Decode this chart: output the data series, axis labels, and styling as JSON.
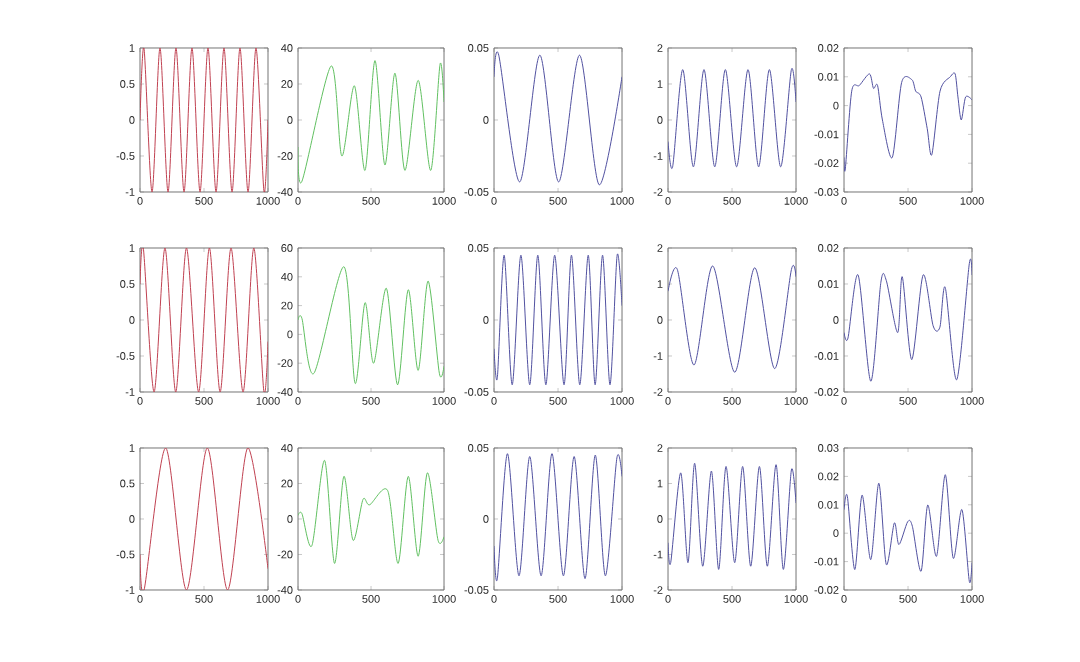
{
  "chart_data": [
    {
      "type": "line",
      "color": "#c04050",
      "xlim": [
        0,
        1000
      ],
      "ylim": [
        -1,
        1
      ],
      "xticks": [
        0,
        500,
        1000
      ],
      "yticks": [
        -1,
        -0.5,
        0,
        0.5,
        1
      ],
      "x": [
        0,
        31,
        94,
        156,
        219,
        281,
        344,
        406,
        469,
        531,
        594,
        656,
        719,
        781,
        844,
        906,
        969,
        1000
      ],
      "values": [
        0,
        1,
        -1,
        1,
        -1,
        1,
        -1,
        1,
        -1,
        1,
        -1,
        1,
        -1,
        1,
        -1,
        1,
        -1,
        0
      ]
    },
    {
      "type": "line",
      "color": "#60c060",
      "xlim": [
        0,
        1000
      ],
      "ylim": [
        -40,
        40
      ],
      "xticks": [
        0,
        500,
        1000
      ],
      "yticks": [
        -40,
        -20,
        0,
        20,
        40
      ],
      "x": [
        0,
        27,
        227,
        300,
        386,
        459,
        527,
        595,
        664,
        732,
        823,
        909,
        973,
        1000
      ],
      "values": [
        -15,
        -34,
        30,
        -20,
        19,
        -28,
        33,
        -25,
        26,
        -28,
        22,
        -28,
        31,
        10
      ]
    },
    {
      "type": "line",
      "color": "#5050a0",
      "xlim": [
        0,
        1000
      ],
      "ylim": [
        -0.05,
        0.05
      ],
      "xticks": [
        0,
        500,
        1000
      ],
      "yticks": [
        -0.05,
        0,
        0.05
      ],
      "x": [
        0,
        37,
        200,
        358,
        505,
        668,
        822,
        1000
      ],
      "values": [
        0.03,
        0.045,
        -0.043,
        0.045,
        -0.043,
        0.045,
        -0.045,
        0.03
      ]
    },
    {
      "type": "line",
      "color": "#5050a0",
      "xlim": [
        0,
        1000
      ],
      "ylim": [
        -2,
        2
      ],
      "xticks": [
        0,
        500,
        1000
      ],
      "yticks": [
        -2,
        -1,
        0,
        1,
        2
      ],
      "x": [
        0,
        36,
        115,
        198,
        281,
        365,
        448,
        536,
        625,
        708,
        792,
        880,
        964,
        1000
      ],
      "values": [
        -0.6,
        -1.3,
        1.4,
        -1.3,
        1.4,
        -1.3,
        1.4,
        -1.3,
        1.4,
        -1.3,
        1.4,
        -1.3,
        1.4,
        0.5
      ]
    },
    {
      "type": "line",
      "color": "#5050a0",
      "xlim": [
        0,
        1000
      ],
      "ylim": [
        -0.03,
        0.02
      ],
      "xticks": [
        0,
        500,
        1000
      ],
      "yticks": [
        -0.03,
        -0.02,
        -0.01,
        0,
        0.01,
        0.02
      ],
      "x": [
        0,
        10,
        60,
        120,
        199,
        230,
        262,
        300,
        377,
        450,
        530,
        560,
        602,
        650,
        686,
        750,
        830,
        868,
        890,
        916,
        950,
        1000
      ],
      "values": [
        -0.018,
        -0.022,
        0.005,
        0.007,
        0.011,
        0.006,
        0.007,
        -0.005,
        -0.018,
        0.008,
        0.009,
        0.005,
        0.003,
        -0.008,
        -0.017,
        0.005,
        0.01,
        0.011,
        0.003,
        -0.005,
        0.003,
        0.002
      ]
    },
    {
      "type": "line",
      "color": "#c04050",
      "xlim": [
        0,
        1000
      ],
      "ylim": [
        -1,
        1
      ],
      "xticks": [
        0,
        500,
        1000
      ],
      "yticks": [
        -1,
        -0.5,
        0,
        0.5,
        1
      ],
      "x": [
        0,
        26,
        110,
        195,
        279,
        363,
        458,
        542,
        626,
        711,
        805,
        889,
        968,
        1000
      ],
      "values": [
        0.5,
        1,
        -1,
        1,
        -1,
        1,
        -1,
        1,
        -1,
        1,
        -1,
        1,
        -1,
        -0.3
      ]
    },
    {
      "type": "line",
      "color": "#60c060",
      "xlim": [
        0,
        1000
      ],
      "ylim": [
        -40,
        60
      ],
      "xticks": [
        0,
        500,
        1000
      ],
      "yticks": [
        -40,
        -20,
        0,
        20,
        40,
        60
      ],
      "x": [
        0,
        27,
        109,
        314,
        391,
        459,
        518,
        605,
        682,
        755,
        823,
        891,
        968,
        1000
      ],
      "values": [
        10,
        11,
        -27,
        47,
        -34,
        22,
        -20,
        32,
        -35,
        31,
        -25,
        37,
        -27,
        -22
      ]
    },
    {
      "type": "line",
      "color": "#5050a0",
      "xlim": [
        0,
        1000
      ],
      "ylim": [
        -0.05,
        0.05
      ],
      "xticks": [
        0,
        500,
        1000
      ],
      "yticks": [
        -0.05,
        0,
        0.05
      ],
      "x": [
        0,
        26,
        79,
        142,
        210,
        279,
        342,
        405,
        474,
        547,
        605,
        670,
        736,
        790,
        848,
        906,
        962,
        1000
      ],
      "values": [
        -0.02,
        -0.04,
        0.045,
        -0.045,
        0.045,
        -0.045,
        0.045,
        -0.045,
        0.045,
        -0.045,
        0.045,
        -0.045,
        0.045,
        -0.045,
        0.045,
        -0.045,
        0.045,
        0.01
      ]
    },
    {
      "type": "line",
      "color": "#5050a0",
      "xlim": [
        0,
        1000
      ],
      "ylim": [
        -2,
        2
      ],
      "xticks": [
        0,
        500,
        1000
      ],
      "yticks": [
        -2,
        -1,
        0,
        1,
        2
      ],
      "x": [
        0,
        73,
        203,
        349,
        521,
        677,
        833,
        964,
        1000
      ],
      "values": [
        0.8,
        1.4,
        -1.25,
        1.5,
        -1.45,
        1.45,
        -1.35,
        1.4,
        1.2
      ]
    },
    {
      "type": "line",
      "color": "#5050a0",
      "xlim": [
        0,
        1000
      ],
      "ylim": [
        -0.02,
        0.02
      ],
      "xticks": [
        0,
        500,
        1000
      ],
      "yticks": [
        -0.02,
        -0.01,
        0,
        0.01,
        0.02
      ],
      "x": [
        0,
        31,
        110,
        209,
        288,
        330,
        419,
        455,
        529,
        618,
        696,
        749,
        791,
        880,
        979,
        1000
      ],
      "values": [
        -0.0035,
        -0.005,
        0.0125,
        -0.017,
        0.0105,
        0.011,
        -0.0035,
        0.012,
        -0.011,
        0.0125,
        -0.0016,
        -0.002,
        0.009,
        -0.0166,
        0.0157,
        0.0125
      ]
    },
    {
      "type": "line",
      "color": "#c04050",
      "xlim": [
        0,
        1000
      ],
      "ylim": [
        -1,
        1
      ],
      "xticks": [
        0,
        500,
        1000
      ],
      "yticks": [
        -1,
        -0.5,
        0,
        0.5,
        1
      ],
      "x": [
        0,
        32,
        200,
        363,
        526,
        684,
        842,
        1000
      ],
      "values": [
        -0.5,
        -1,
        1,
        -1,
        1,
        -1,
        1,
        -0.7
      ]
    },
    {
      "type": "line",
      "color": "#60c060",
      "xlim": [
        0,
        1000
      ],
      "ylim": [
        -40,
        40
      ],
      "xticks": [
        0,
        500,
        1000
      ],
      "yticks": [
        -40,
        -20,
        0,
        20,
        40
      ],
      "x": [
        0,
        27,
        95,
        182,
        250,
        314,
        377,
        445,
        491,
        614,
        686,
        755,
        823,
        886,
        959,
        1000
      ],
      "values": [
        2,
        3,
        -15,
        33,
        -25,
        24,
        -12,
        11,
        8,
        16,
        -25,
        24,
        -21,
        26,
        -12,
        -10
      ]
    },
    {
      "type": "line",
      "color": "#5050a0",
      "xlim": [
        0,
        1000
      ],
      "ylim": [
        -0.05,
        0.05
      ],
      "xticks": [
        0,
        500,
        1000
      ],
      "yticks": [
        -0.05,
        0,
        0.05
      ],
      "x": [
        0,
        26,
        105,
        195,
        279,
        368,
        453,
        542,
        626,
        711,
        791,
        870,
        960,
        1000
      ],
      "values": [
        -0.019,
        -0.042,
        0.046,
        -0.04,
        0.044,
        -0.04,
        0.046,
        -0.04,
        0.044,
        -0.042,
        0.045,
        -0.04,
        0.043,
        0.03
      ]
    },
    {
      "type": "line",
      "color": "#5050a0",
      "xlim": [
        0,
        1000
      ],
      "ylim": [
        -2,
        2
      ],
      "xticks": [
        0,
        500,
        1000
      ],
      "yticks": [
        -2,
        -1,
        0,
        1,
        2
      ],
      "x": [
        0,
        21,
        99,
        156,
        208,
        271,
        339,
        396,
        453,
        521,
        583,
        646,
        714,
        776,
        844,
        901,
        964,
        1000
      ],
      "values": [
        -0.67,
        -1.23,
        1.3,
        -1.23,
        1.57,
        -1.33,
        1.35,
        -1.42,
        1.48,
        -1.23,
        1.48,
        -1.33,
        1.48,
        -1.33,
        1.53,
        -1.42,
        1.38,
        0.45
      ]
    },
    {
      "type": "line",
      "color": "#5050a0",
      "xlim": [
        0,
        1000
      ],
      "ylim": [
        -0.02,
        0.03
      ],
      "xticks": [
        0,
        500,
        1000
      ],
      "yticks": [
        -0.02,
        -0.01,
        0,
        0.01,
        0.02,
        0.03
      ],
      "x": [
        0,
        26,
        84,
        141,
        209,
        272,
        330,
        393,
        429,
        497,
        534,
        602,
        654,
        723,
        791,
        853,
        921,
        979,
        1000
      ],
      "values": [
        0.0083,
        0.013,
        -0.0128,
        0.0134,
        -0.0093,
        0.0176,
        -0.011,
        0.0036,
        -0.004,
        0.004,
        0.0024,
        -0.0134,
        0.0099,
        -0.0081,
        0.0206,
        -0.0088,
        0.0083,
        -0.017,
        -0.0104
      ]
    }
  ]
}
